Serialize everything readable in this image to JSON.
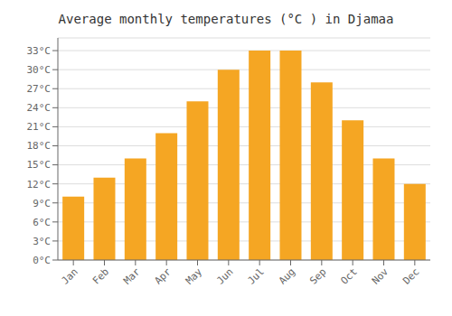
{
  "chart_data": {
    "type": "bar",
    "title": "Average monthly temperatures (°C ) in Djamaa",
    "categories": [
      "Jan",
      "Feb",
      "Mar",
      "Apr",
      "May",
      "Jun",
      "Jul",
      "Aug",
      "Sep",
      "Oct",
      "Nov",
      "Dec"
    ],
    "values": [
      10,
      13,
      16,
      20,
      25,
      30,
      33,
      33,
      28,
      22,
      16,
      12
    ],
    "color": "#F5A623",
    "ylim": [
      0,
      35
    ],
    "yticks": [
      {
        "value": 0,
        "label": "0°C"
      },
      {
        "value": 3,
        "label": "3°C"
      },
      {
        "value": 6,
        "label": "6°C"
      },
      {
        "value": 9,
        "label": "9°C"
      },
      {
        "value": 12,
        "label": "12°C"
      },
      {
        "value": 15,
        "label": "15°C"
      },
      {
        "value": 18,
        "label": "18°C"
      },
      {
        "value": 21,
        "label": "21°C"
      },
      {
        "value": 24,
        "label": "24°C"
      },
      {
        "value": 27,
        "label": "27°C"
      },
      {
        "value": 30,
        "label": "30°C"
      },
      {
        "value": 33,
        "label": "33°C"
      }
    ],
    "grid": true
  }
}
